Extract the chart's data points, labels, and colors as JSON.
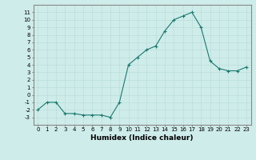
{
  "x": [
    0,
    1,
    2,
    3,
    4,
    5,
    6,
    7,
    8,
    9,
    10,
    11,
    12,
    13,
    14,
    15,
    16,
    17,
    18,
    19,
    20,
    21,
    22,
    23
  ],
  "y": [
    -2,
    -1,
    -1,
    -2.5,
    -2.5,
    -2.7,
    -2.7,
    -2.7,
    -3,
    -1,
    4,
    5,
    6,
    6.5,
    8.5,
    10,
    10.5,
    11,
    9,
    4.5,
    3.5,
    3.2,
    3.2,
    3.7
  ],
  "xlabel": "Humidex (Indice chaleur)",
  "line_color": "#1a7a6e",
  "marker": "+",
  "bg_color": "#ceecea",
  "grid_color": "#b8dbd8",
  "xlim": [
    -0.5,
    23.5
  ],
  "ylim": [
    -4,
    12
  ],
  "yticks": [
    -3,
    -2,
    -1,
    0,
    1,
    2,
    3,
    4,
    5,
    6,
    7,
    8,
    9,
    10,
    11
  ],
  "xticks": [
    0,
    1,
    2,
    3,
    4,
    5,
    6,
    7,
    8,
    9,
    10,
    11,
    12,
    13,
    14,
    15,
    16,
    17,
    18,
    19,
    20,
    21,
    22,
    23
  ],
  "tick_fontsize": 5.0,
  "xlabel_fontsize": 6.5
}
